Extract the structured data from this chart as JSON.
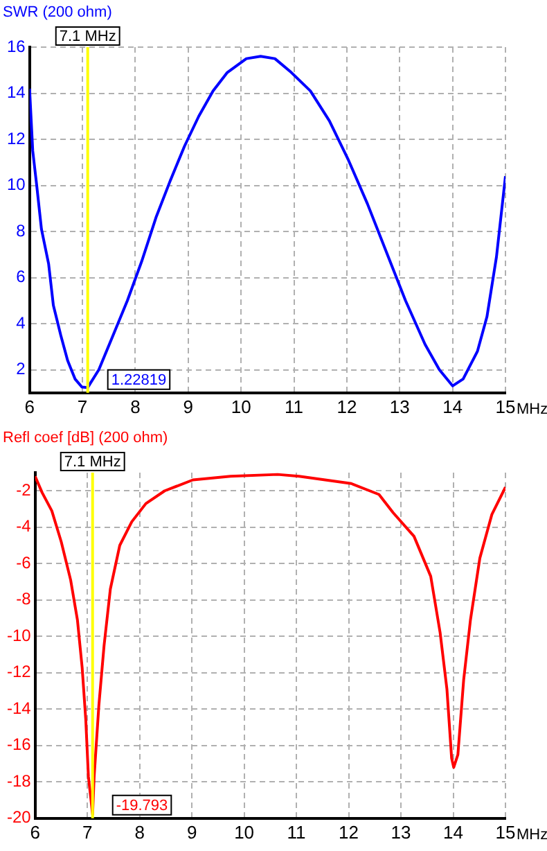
{
  "chart_data": [
    {
      "type": "line",
      "ylabel": "SWR (200 ohm)",
      "xlabel": "MHz",
      "xlim": [
        6,
        15
      ],
      "xticks": [
        6,
        7,
        8,
        9,
        10,
        11,
        12,
        13,
        14,
        15
      ],
      "ylim": [
        1,
        16
      ],
      "yticks": [
        2,
        4,
        6,
        8,
        10,
        12,
        14,
        16
      ],
      "grid": true,
      "legend": false,
      "marker": "none",
      "line_style": "solid",
      "series": [
        {
          "color": "#0000ff",
          "x": [
            6.0,
            6.06,
            6.135,
            6.225,
            6.36,
            6.45,
            6.59,
            6.72,
            6.86,
            6.99,
            7.1,
            7.31,
            7.58,
            7.85,
            8.12,
            8.39,
            8.66,
            8.93,
            9.2,
            9.47,
            9.74,
            10.1,
            10.37,
            10.64,
            10.95,
            11.31,
            11.67,
            12.03,
            12.39,
            12.75,
            13.11,
            13.48,
            13.75,
            14.0,
            14.2,
            14.47,
            14.65,
            14.83,
            15.0
          ],
          "values": [
            14.2,
            11.5,
            10.0,
            8.1,
            6.6,
            4.8,
            3.5,
            2.4,
            1.6,
            1.25,
            1.23,
            2.0,
            3.5,
            5.0,
            6.7,
            8.6,
            10.2,
            11.7,
            13.0,
            14.1,
            14.9,
            15.5,
            15.6,
            15.5,
            14.9,
            14.1,
            12.8,
            11.1,
            9.2,
            7.1,
            5.0,
            3.1,
            2.0,
            1.3,
            1.6,
            2.8,
            4.3,
            6.9,
            10.4
          ]
        }
      ],
      "ref_lines": [
        {
          "axis": "x",
          "value": 7.1,
          "label": "7.1 MHz",
          "color": "#ffff00"
        }
      ],
      "annotations": [
        {
          "text": "1.22819",
          "x": 7.1,
          "y": 1.22819
        }
      ]
    },
    {
      "type": "line",
      "ylabel": "Refl coef [dB] (200 ohm)",
      "xlabel": "MHz",
      "xlim": [
        6,
        15
      ],
      "xticks": [
        6,
        7,
        8,
        9,
        10,
        11,
        12,
        13,
        14,
        15
      ],
      "ylim": [
        -20,
        -1
      ],
      "yticks": [
        -2,
        -4,
        -6,
        -8,
        -10,
        -12,
        -14,
        -16,
        -18,
        -20
      ],
      "grid": true,
      "legend": false,
      "marker": "none",
      "line_style": "solid",
      "series": [
        {
          "color": "#ff0000",
          "x": [
            6.0,
            6.135,
            6.32,
            6.5,
            6.68,
            6.81,
            6.9,
            6.97,
            7.02,
            7.1,
            7.13,
            7.22,
            7.32,
            7.44,
            7.62,
            7.85,
            8.12,
            8.48,
            9.02,
            9.74,
            10.64,
            11.05,
            12.05,
            12.58,
            12.85,
            13.25,
            13.57,
            13.75,
            13.88,
            13.97,
            14.01,
            14.09,
            14.2,
            14.33,
            14.51,
            14.74,
            15.0
          ],
          "values": [
            -1.2,
            -2.1,
            -3.1,
            -4.8,
            -6.9,
            -9.1,
            -11.7,
            -14.6,
            -17.7,
            -19.793,
            -17.7,
            -13.8,
            -10.5,
            -7.4,
            -5.0,
            -3.7,
            -2.7,
            -2.0,
            -1.4,
            -1.2,
            -1.1,
            -1.2,
            -1.6,
            -2.2,
            -3.2,
            -4.5,
            -6.7,
            -9.8,
            -12.9,
            -16.7,
            -17.2,
            -16.5,
            -12.4,
            -9.1,
            -5.7,
            -3.3,
            -1.8
          ]
        }
      ],
      "ref_lines": [
        {
          "axis": "x",
          "value": 7.1,
          "label": "7.1 MHz",
          "color": "#ffff00"
        }
      ],
      "annotations": [
        {
          "text": "-19.793",
          "x": 7.1,
          "y": -19.793
        }
      ]
    }
  ]
}
